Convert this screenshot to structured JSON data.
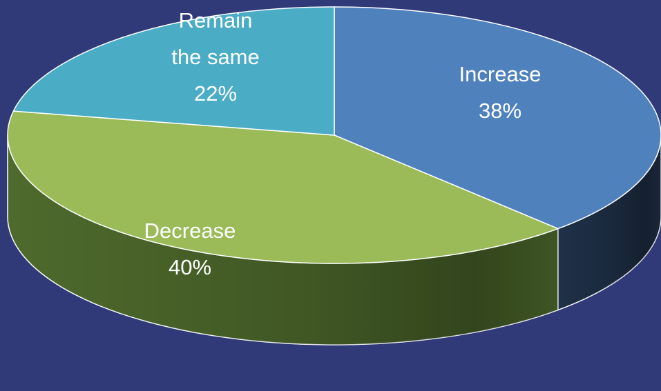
{
  "chart_data": {
    "type": "pie",
    "style": "3d",
    "start_angle_deg": 90,
    "direction": "clockwise",
    "slices": [
      {
        "label": "Increase",
        "value": 38,
        "value_label": "38%",
        "color": "#4f81bd",
        "side_color": "#1f3148"
      },
      {
        "label": "Decrease",
        "value": 40,
        "value_label": "40%",
        "color": "#9bbb59",
        "side_color": "#4e6a2c"
      },
      {
        "label": "Remain the same",
        "label_lines": [
          "Remain",
          "the same"
        ],
        "value": 22,
        "value_label": "22%",
        "color": "#4bacc6",
        "side_color": "#2d7183"
      }
    ],
    "background": "#313a78",
    "edge_color": "#ffffff"
  }
}
